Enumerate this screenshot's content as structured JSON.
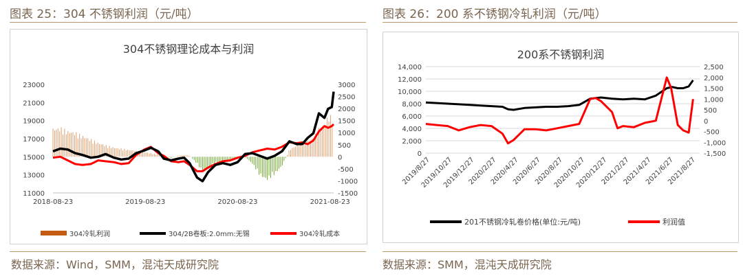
{
  "left": {
    "figure_title": "图表 25：304 不锈钢利润（元/吨）",
    "source": "数据来源：Wind，SMM，混沌天成研究院"
  },
  "right": {
    "figure_title": "图表 26：200 系不锈钢冷轧利润（元/吨）",
    "source": "数据来源：SMM，混沌天成研究院"
  },
  "colors": {
    "black": "#000000",
    "red": "#ff0000",
    "bar_pos": "#e0a070",
    "bar_neg": "#70a830",
    "legend_bar": "#c55a11"
  },
  "chart_data": [
    {
      "type": "line",
      "title": "304不锈钢理论成本与利润",
      "x_ticks": [
        "2018-08-23",
        "2019-08-23",
        "2020-08-23",
        "2021-08-23"
      ],
      "ylim_left": [
        11000,
        23000
      ],
      "yticks_left": [
        "23000",
        "21000",
        "19000",
        "17000",
        "15000",
        "13000",
        "11000"
      ],
      "ylim_right": [
        -1500,
        3000
      ],
      "yticks_right": [
        "3000",
        "2500",
        "2000",
        "1500",
        "1000",
        "500",
        "0",
        "-500",
        "-1000",
        "-1500"
      ],
      "x_range": [
        2018.64,
        2021.68
      ],
      "series": [
        {
          "name": "304/2B卷板:2.0mm:无锡",
          "axis": "left",
          "x": [
            2018.64,
            2018.72,
            2018.8,
            2018.88,
            2018.96,
            2019.05,
            2019.13,
            2019.21,
            2019.3,
            2019.38,
            2019.46,
            2019.54,
            2019.63,
            2019.7,
            2019.78,
            2019.84,
            2019.92,
            2020.0,
            2020.06,
            2020.12,
            2020.2,
            2020.26,
            2020.32,
            2020.4,
            2020.48,
            2020.56,
            2020.64,
            2020.72,
            2020.8,
            2020.88,
            2020.96,
            2021.04,
            2021.12,
            2021.2,
            2021.28,
            2021.34,
            2021.4,
            2021.46,
            2021.52,
            2021.58,
            2021.62,
            2021.66,
            2021.68
          ],
          "values": [
            15600,
            15900,
            15800,
            15400,
            15200,
            14900,
            15000,
            15300,
            14900,
            14700,
            14800,
            15400,
            15700,
            16000,
            15600,
            14800,
            14600,
            14800,
            14900,
            14300,
            12700,
            12300,
            13300,
            14100,
            14300,
            14100,
            14400,
            15300,
            15400,
            15100,
            14800,
            15100,
            15600,
            16700,
            16400,
            16400,
            17100,
            17600,
            19800,
            19300,
            20300,
            20500,
            22200
          ]
        },
        {
          "name": "304冷轧成本",
          "axis": "left",
          "x": [
            2018.64,
            2018.72,
            2018.8,
            2018.88,
            2018.96,
            2019.05,
            2019.13,
            2019.21,
            2019.3,
            2019.38,
            2019.46,
            2019.54,
            2019.63,
            2019.7,
            2019.78,
            2019.84,
            2019.92,
            2020.0,
            2020.06,
            2020.12,
            2020.2,
            2020.26,
            2020.32,
            2020.4,
            2020.48,
            2020.56,
            2020.64,
            2020.72,
            2020.8,
            2020.88,
            2020.96,
            2021.04,
            2021.12,
            2021.2,
            2021.28,
            2021.34,
            2021.4,
            2021.46,
            2021.52,
            2021.58,
            2021.62,
            2021.66,
            2021.68
          ],
          "values": [
            14900,
            15000,
            14600,
            14200,
            14100,
            14200,
            14600,
            14500,
            14400,
            14200,
            14300,
            15200,
            15800,
            16100,
            15400,
            15100,
            14500,
            14400,
            14500,
            14100,
            13400,
            13400,
            13800,
            14200,
            14500,
            14600,
            14900,
            15100,
            15500,
            15700,
            15900,
            15800,
            16100,
            16600,
            16500,
            16600,
            16400,
            16800,
            17800,
            18400,
            18200,
            18400,
            18600
          ]
        },
        {
          "name": "304冷轧利润",
          "axis": "right",
          "style": "bar",
          "x": [
            2018.64,
            2018.72,
            2018.8,
            2018.88,
            2018.96,
            2019.05,
            2019.13,
            2019.21,
            2019.3,
            2019.38,
            2019.46,
            2019.54,
            2019.63,
            2019.7,
            2019.78,
            2019.84,
            2019.92,
            2020.0,
            2020.06,
            2020.12,
            2020.2,
            2020.26,
            2020.32,
            2020.4,
            2020.48,
            2020.56,
            2020.64,
            2020.72,
            2020.8,
            2020.88,
            2020.96,
            2021.04,
            2021.12,
            2021.2,
            2021.28,
            2021.34,
            2021.4,
            2021.46,
            2021.52,
            2021.58,
            2021.62,
            2021.66,
            2021.68
          ],
          "values": [
            1200,
            1250,
            1100,
            1050,
            900,
            750,
            600,
            500,
            400,
            350,
            300,
            250,
            200,
            150,
            100,
            50,
            -50,
            50,
            80,
            50,
            -300,
            -650,
            -500,
            -250,
            -200,
            -150,
            -100,
            0,
            -300,
            -800,
            -1000,
            -750,
            -400,
            300,
            500,
            600,
            700,
            800,
            1200,
            1300,
            1800,
            1700,
            1300
          ]
        }
      ],
      "legend": [
        {
          "label": "304冷轧利润",
          "kind": "bar"
        },
        {
          "label": "304/2B卷板:2.0mm:无锡",
          "kind": "line",
          "color": "#000000"
        },
        {
          "label": "304冷轧成本",
          "kind": "line",
          "color": "#ff0000"
        }
      ],
      "legend_position": "bottom",
      "grid": false
    },
    {
      "type": "line",
      "title": "200系不锈钢利润",
      "x_ticks": [
        "2019/8/27",
        "2019/10/27",
        "2019/12/27",
        "2020/2/27",
        "2020/4/27",
        "2020/6/27",
        "2020/8/27",
        "2020/10/27",
        "2020/12/27",
        "2021/2/27",
        "2021/4/27",
        "2021/6/27",
        "2021/8/27"
      ],
      "ylim_left": [
        0,
        14000
      ],
      "yticks_left": [
        "14,000",
        "12,000",
        "10,000",
        "8,000",
        "6,000",
        "4,000",
        "2,000",
        "0"
      ],
      "ylim_right": [
        -1500,
        2500
      ],
      "yticks_right": [
        "2,500",
        "2,000",
        "1,500",
        "1,000",
        "500",
        "0",
        "-500",
        "-1,000",
        "-1,500"
      ],
      "x_range": [
        0,
        25
      ],
      "series": [
        {
          "name": "201不锈钢冷轧卷价格(单位:元/吨)",
          "axis": "left",
          "x": [
            0,
            1,
            2,
            3,
            4,
            5,
            6,
            7,
            7.5,
            8,
            9,
            10,
            11,
            12,
            13,
            14,
            15,
            16,
            17,
            18,
            19,
            20,
            21,
            22,
            22.5,
            23,
            23.5,
            24,
            24.4
          ],
          "values": [
            8200,
            8100,
            8000,
            7900,
            7800,
            7700,
            7600,
            7500,
            7100,
            7000,
            7300,
            7400,
            7500,
            7500,
            7600,
            7800,
            8800,
            9000,
            8800,
            8700,
            8800,
            8700,
            9300,
            10500,
            10700,
            10500,
            10500,
            10800,
            11800
          ]
        },
        {
          "name": "利润值",
          "axis": "right",
          "x": [
            0,
            1,
            2,
            3,
            4,
            5,
            6,
            7,
            7.5,
            8,
            9,
            10,
            11,
            12,
            13,
            14,
            15,
            15.5,
            16,
            17,
            17.5,
            18,
            19,
            20,
            21,
            22,
            22.4,
            23,
            23.5,
            24,
            24.4
          ],
          "values": [
            -150,
            -200,
            -250,
            -450,
            -300,
            -200,
            -250,
            -600,
            -1050,
            -900,
            -400,
            -400,
            -450,
            -350,
            -250,
            -150,
            1000,
            1050,
            900,
            400,
            -350,
            -250,
            -300,
            -100,
            0,
            2000,
            1500,
            -200,
            -450,
            -550,
            1000
          ]
        }
      ],
      "legend": [
        {
          "label": "201不锈钢冷轧卷价格(单位:元/吨)",
          "kind": "line",
          "color": "#000000"
        },
        {
          "label": "利润值",
          "kind": "line",
          "color": "#ff0000"
        }
      ],
      "legend_position": "bottom",
      "grid": true
    }
  ]
}
